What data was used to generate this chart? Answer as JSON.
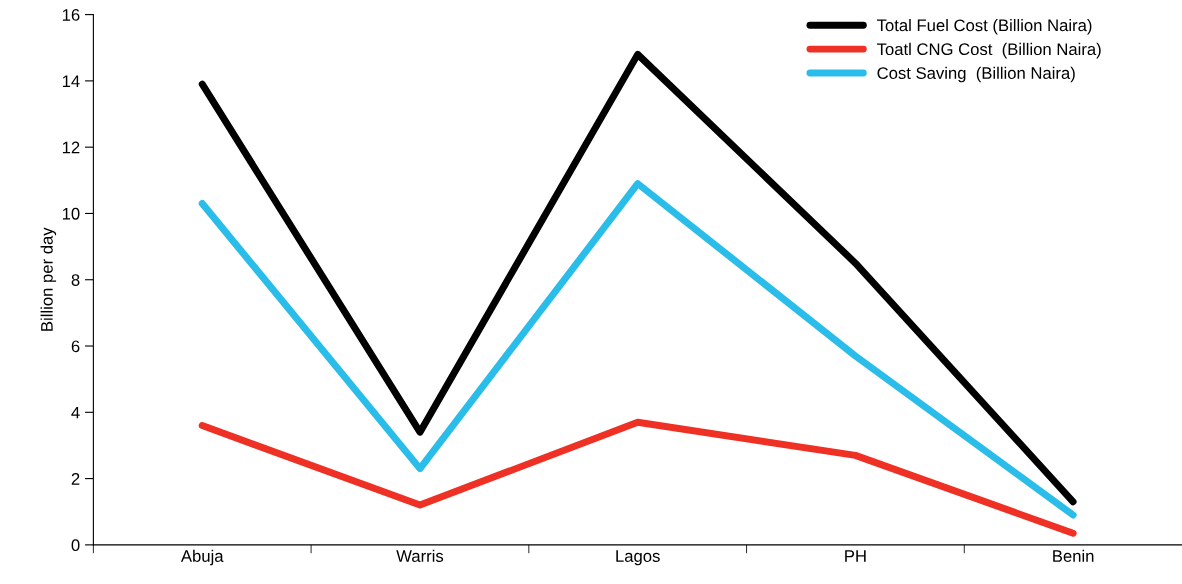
{
  "chart_data": {
    "type": "line",
    "ylabel": "Billion per day",
    "categories": [
      "Abuja",
      "Warris",
      "Lagos",
      "PH",
      "Benin"
    ],
    "series": [
      {
        "name": "Total Fuel Cost (Billion Naira)",
        "color": "#000000",
        "values": [
          13.9,
          3.4,
          14.8,
          8.5,
          1.3
        ]
      },
      {
        "name": "Toatl CNG Cost  (Billion Naira)",
        "color": "#ee3124",
        "values": [
          3.6,
          1.2,
          3.7,
          2.7,
          0.35
        ]
      },
      {
        "name": "Cost Saving  (Billion Naira)",
        "color": "#2bbde9",
        "values": [
          10.3,
          2.3,
          10.9,
          5.7,
          0.9
        ]
      }
    ],
    "ylim": [
      0,
      16
    ],
    "yticks": [
      0,
      2,
      4,
      6,
      8,
      10,
      12,
      14,
      16
    ],
    "grid": false,
    "legend": "top right",
    "marker": "none",
    "line_style": "solid"
  }
}
